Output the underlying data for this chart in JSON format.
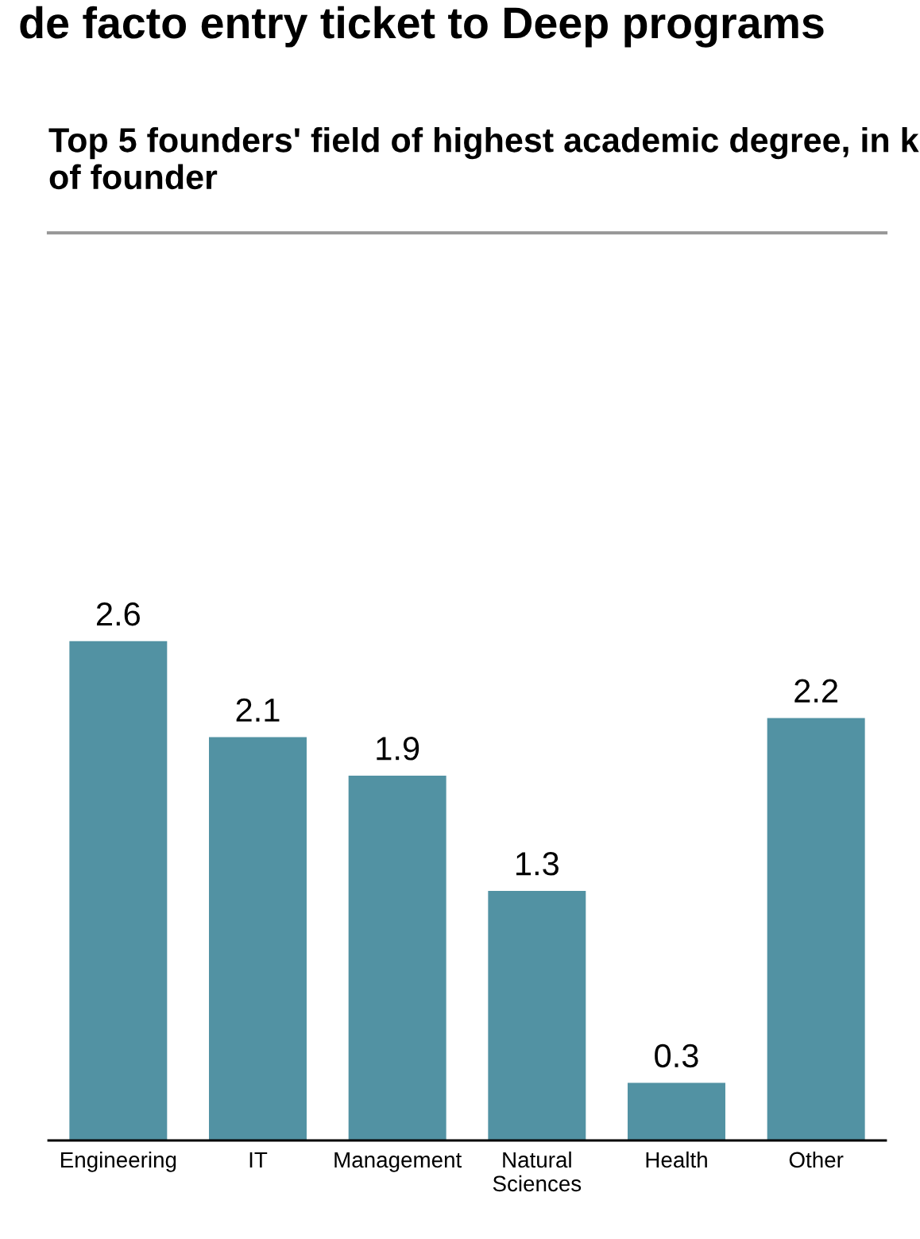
{
  "chart_data": {
    "type": "bar",
    "title": "de facto entry ticket to Deep programs",
    "subtitle": "Top 5 founders' field of highest academic degree, in k of founder",
    "categories": [
      "Engineering",
      "IT",
      "Management",
      "Natural\nSciences",
      "Health",
      "Other"
    ],
    "values": [
      2.6,
      2.1,
      1.9,
      1.3,
      0.3,
      2.2
    ],
    "color": "#5292a3",
    "data_labels": true,
    "grid": false,
    "legend": false
  }
}
